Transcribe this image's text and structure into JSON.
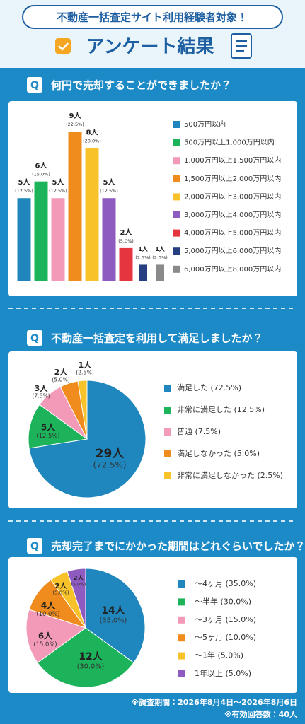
{
  "header": {
    "subtitle": "不動産一括査定サイト利用経験者対象！",
    "title": "アンケート結果"
  },
  "q_mark": "Q",
  "chart_data": [
    {
      "type": "bar",
      "question": "何円で売却することができましたか？",
      "categories": [
        "500万円以内",
        "500万円以上1,000万円以内",
        "1,000万円以上1,500万円以内",
        "1,500万円以上2,000万円以内",
        "2,000万円以上3,000万円以内",
        "3,000万円以上4,000万円以内",
        "4,000万円以上5,000万円以内",
        "5,000万円以上6,000万円以内",
        "6,000万円以上8,000万円以内"
      ],
      "values": [
        5,
        6,
        5,
        9,
        8,
        5,
        2,
        1,
        1
      ],
      "value_labels": [
        "5人",
        "6人",
        "5人",
        "9人",
        "8人",
        "5人",
        "2人",
        "1人",
        "1人"
      ],
      "percent_labels": [
        "(12.5%)",
        "(15.0%)",
        "(12.5%)",
        "(22.5%)",
        "(20.0%)",
        "(12.5%)",
        "(5.0%)",
        "(2.5%)",
        "(2.5%)"
      ],
      "colors": [
        "#1f87be",
        "#1db35a",
        "#f39ab8",
        "#ef8c1d",
        "#f8c32a",
        "#8e5bc1",
        "#e5353f",
        "#273f80",
        "#8a8a8a"
      ]
    },
    {
      "type": "pie",
      "question": "不動産一括査定を利用して満足しましたか？",
      "categories": [
        "満足した (72.5%)",
        "非常に満足した (12.5%)",
        "普通 (7.5%)",
        "満足しなかった (5.0%)",
        "非常に満足しなかった (2.5%)"
      ],
      "values": [
        29,
        5,
        3,
        2,
        1
      ],
      "value_labels": [
        "29人",
        "5人",
        "3人",
        "2人",
        "1人"
      ],
      "percent_labels": [
        "(72.5%)",
        "(12.5%)",
        "(7.5%)",
        "(5.0%)",
        "(2.5%)"
      ],
      "colors": [
        "#1f87be",
        "#1db35a",
        "#f39ab8",
        "#ef8c1d",
        "#f8c32a"
      ]
    },
    {
      "type": "pie",
      "question": "売却完了までにかかった期間はどれぐらいでしたか？",
      "categories": [
        "〜4ヶ月 (35.0%)",
        "〜半年 (30.0%)",
        "〜3ヶ月 (15.0%)",
        "〜5ヶ月 (10.0%)",
        "〜1年 (5.0%)",
        "1年以上 (5.0%)"
      ],
      "values": [
        14,
        12,
        6,
        4,
        2,
        2
      ],
      "value_labels": [
        "14人",
        "12人",
        "6人",
        "4人",
        "2人",
        "2人"
      ],
      "percent_labels": [
        "(35.0%)",
        "(30.0%)",
        "(15.0%)",
        "(10.0%)",
        "(5.0%)",
        "(5.0%)"
      ],
      "colors": [
        "#1f87be",
        "#1db35a",
        "#f39ab8",
        "#ef8c1d",
        "#f8c32a",
        "#8e5bc1"
      ]
    }
  ],
  "footer": {
    "period": "※調査期間：2026年8月4日〜2026年8月6日",
    "respondents": "※有効回答数：40人"
  }
}
